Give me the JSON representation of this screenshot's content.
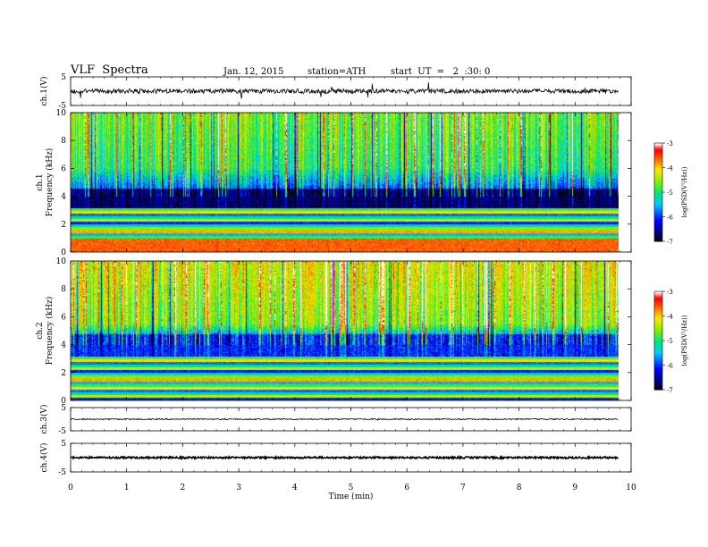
{
  "header": {
    "title": "VLF  Spectra",
    "date": "Jan. 12, 2015",
    "station": "station=ATH",
    "start": "start  UT  =   2  :30: 0"
  },
  "chart_data": [
    {
      "type": "line",
      "panel": "ch1-waveform",
      "ylabel": "ch.1(V)",
      "ylim": [
        -5,
        5
      ],
      "yticks": [
        "5",
        "-5"
      ],
      "xlim": [
        0,
        10
      ]
    },
    {
      "type": "heatmap",
      "panel": "ch1-spectrogram",
      "ylabel": "ch.1\nFrequency (kHz)",
      "ylim": [
        0,
        10
      ],
      "yticks": [
        "10",
        "8",
        "6",
        "4",
        "2",
        "0"
      ],
      "xlim": [
        0,
        10
      ],
      "colorbar": {
        "label": "log(PSD(V²/Hz))",
        "range": [
          -7,
          -3
        ],
        "ticks": [
          "-3",
          "-4",
          "-5",
          "-6",
          "-7"
        ]
      }
    },
    {
      "type": "heatmap",
      "panel": "ch2-spectrogram",
      "ylabel": "ch.2\nFrequency (kHz)",
      "ylim": [
        0,
        10
      ],
      "yticks": [
        "10",
        "8",
        "6",
        "4",
        "2",
        "0"
      ],
      "xlim": [
        0,
        10
      ],
      "colorbar": {
        "label": "log(PSD(V²/Hz))",
        "range": [
          -7,
          -3
        ],
        "ticks": [
          "-3",
          "-4",
          "-5",
          "-6",
          "-7"
        ]
      }
    },
    {
      "type": "line",
      "panel": "ch3-waveform",
      "ylabel": "ch.3(V)",
      "ylim": [
        -5,
        5
      ],
      "yticks": [
        "5",
        "-5"
      ],
      "xlim": [
        0,
        10
      ]
    },
    {
      "type": "line",
      "panel": "ch4-waveform",
      "ylabel": "ch.4(V)",
      "ylim": [
        -5,
        5
      ],
      "yticks": [
        "5",
        "-5"
      ],
      "xlim": [
        0,
        10
      ]
    }
  ],
  "xaxis": {
    "label": "Time  (min)",
    "ticks": [
      "0",
      "1",
      "2",
      "3",
      "4",
      "5",
      "6",
      "7",
      "8",
      "9",
      "10"
    ]
  }
}
